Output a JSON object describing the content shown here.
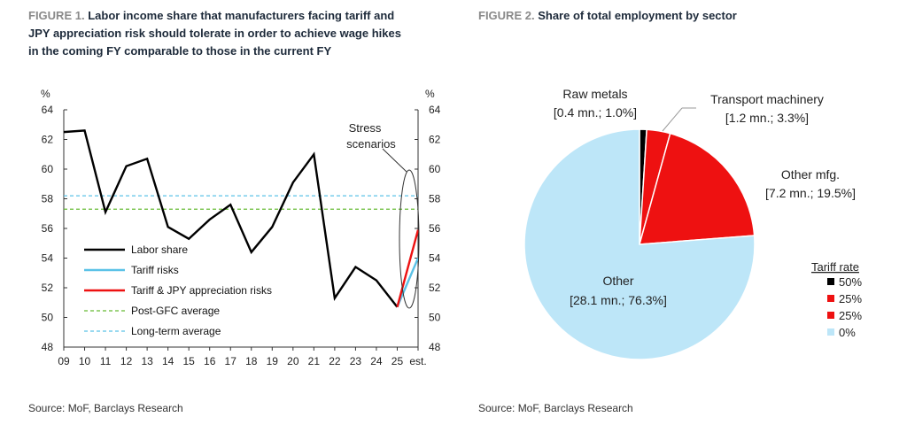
{
  "figure1": {
    "label": "FIGURE 1.",
    "title_lines": [
      "Labor income share that manufacturers facing tariff and",
      "JPY appreciation risk should tolerate in order to achieve wage hikes",
      "in the coming FY comparable to those in the current FY"
    ],
    "source": "Source: MoF, Barclays Research"
  },
  "figure2": {
    "label": "FIGURE 2.",
    "title": "Share of total employment by sector",
    "source": "Source: MoF, Barclays Research"
  },
  "chart_data": [
    {
      "type": "line",
      "title": "Labor income share that manufacturers facing tariff and JPY appreciation risk should tolerate in order to achieve wage hikes in the coming FY comparable to those in the current FY",
      "categories": [
        "09",
        "10",
        "11",
        "12",
        "13",
        "14",
        "15",
        "16",
        "17",
        "18",
        "19",
        "20",
        "21",
        "22",
        "23",
        "24",
        "25",
        "est."
      ],
      "ylim": [
        48,
        64
      ],
      "yticks": [
        "48",
        "50",
        "52",
        "54",
        "56",
        "58",
        "60",
        "62",
        "64"
      ],
      "ylabel_left": "%",
      "ylabel_right": "%",
      "series": [
        {
          "name": "Labor share",
          "color": "#000000",
          "style": "solid",
          "values": [
            62.5,
            62.6,
            57.1,
            60.2,
            60.7,
            56.1,
            55.3,
            56.6,
            57.6,
            54.4,
            56.1,
            59.1,
            61.0,
            51.3,
            53.4,
            52.5,
            50.7,
            null
          ]
        },
        {
          "name": "Tariff risks",
          "color": "#5bc2e7",
          "style": "solid",
          "values": [
            null,
            null,
            null,
            null,
            null,
            null,
            null,
            null,
            null,
            null,
            null,
            null,
            null,
            null,
            null,
            null,
            50.7,
            54.0
          ]
        },
        {
          "name": "Tariff & JPY appreciation risks",
          "color": "#ee1111",
          "style": "solid",
          "values": [
            null,
            null,
            null,
            null,
            null,
            null,
            null,
            null,
            null,
            null,
            null,
            null,
            null,
            null,
            null,
            null,
            50.7,
            55.9
          ]
        },
        {
          "name": "Post-GFC average",
          "color": "#66bb33",
          "style": "dashed",
          "constant": 57.3
        },
        {
          "name": "Long-term average",
          "color": "#5bc2e7",
          "style": "dashed",
          "constant": 58.2
        }
      ],
      "annotations": [
        "Stress",
        "scenarios"
      ]
    },
    {
      "type": "pie",
      "title": "Share of total employment by sector",
      "slices": [
        {
          "label": "Raw metals",
          "detail": "[0.4 mn.; 1.0%]",
          "value": 1.0,
          "color": "#000000"
        },
        {
          "label": "Transport machinery",
          "detail": "[1.2 mn.; 3.3%]",
          "value": 3.3,
          "color": "#ee1111"
        },
        {
          "label": "Other mfg.",
          "detail": "[7.2 mn.; 19.5%]",
          "value": 19.5,
          "color": "#ee1111"
        },
        {
          "label": "Other",
          "detail": "[28.1 mn.; 76.3%]",
          "value": 76.3,
          "color": "#bde6f8"
        }
      ],
      "legend": {
        "title": "Tariff rate",
        "items": [
          {
            "label": "50%",
            "color": "#000000"
          },
          {
            "label": "25%",
            "color": "#ee1111"
          },
          {
            "label": "25%",
            "color": "#ee1111"
          },
          {
            "label": "0%",
            "color": "#bde6f8"
          }
        ]
      }
    }
  ]
}
